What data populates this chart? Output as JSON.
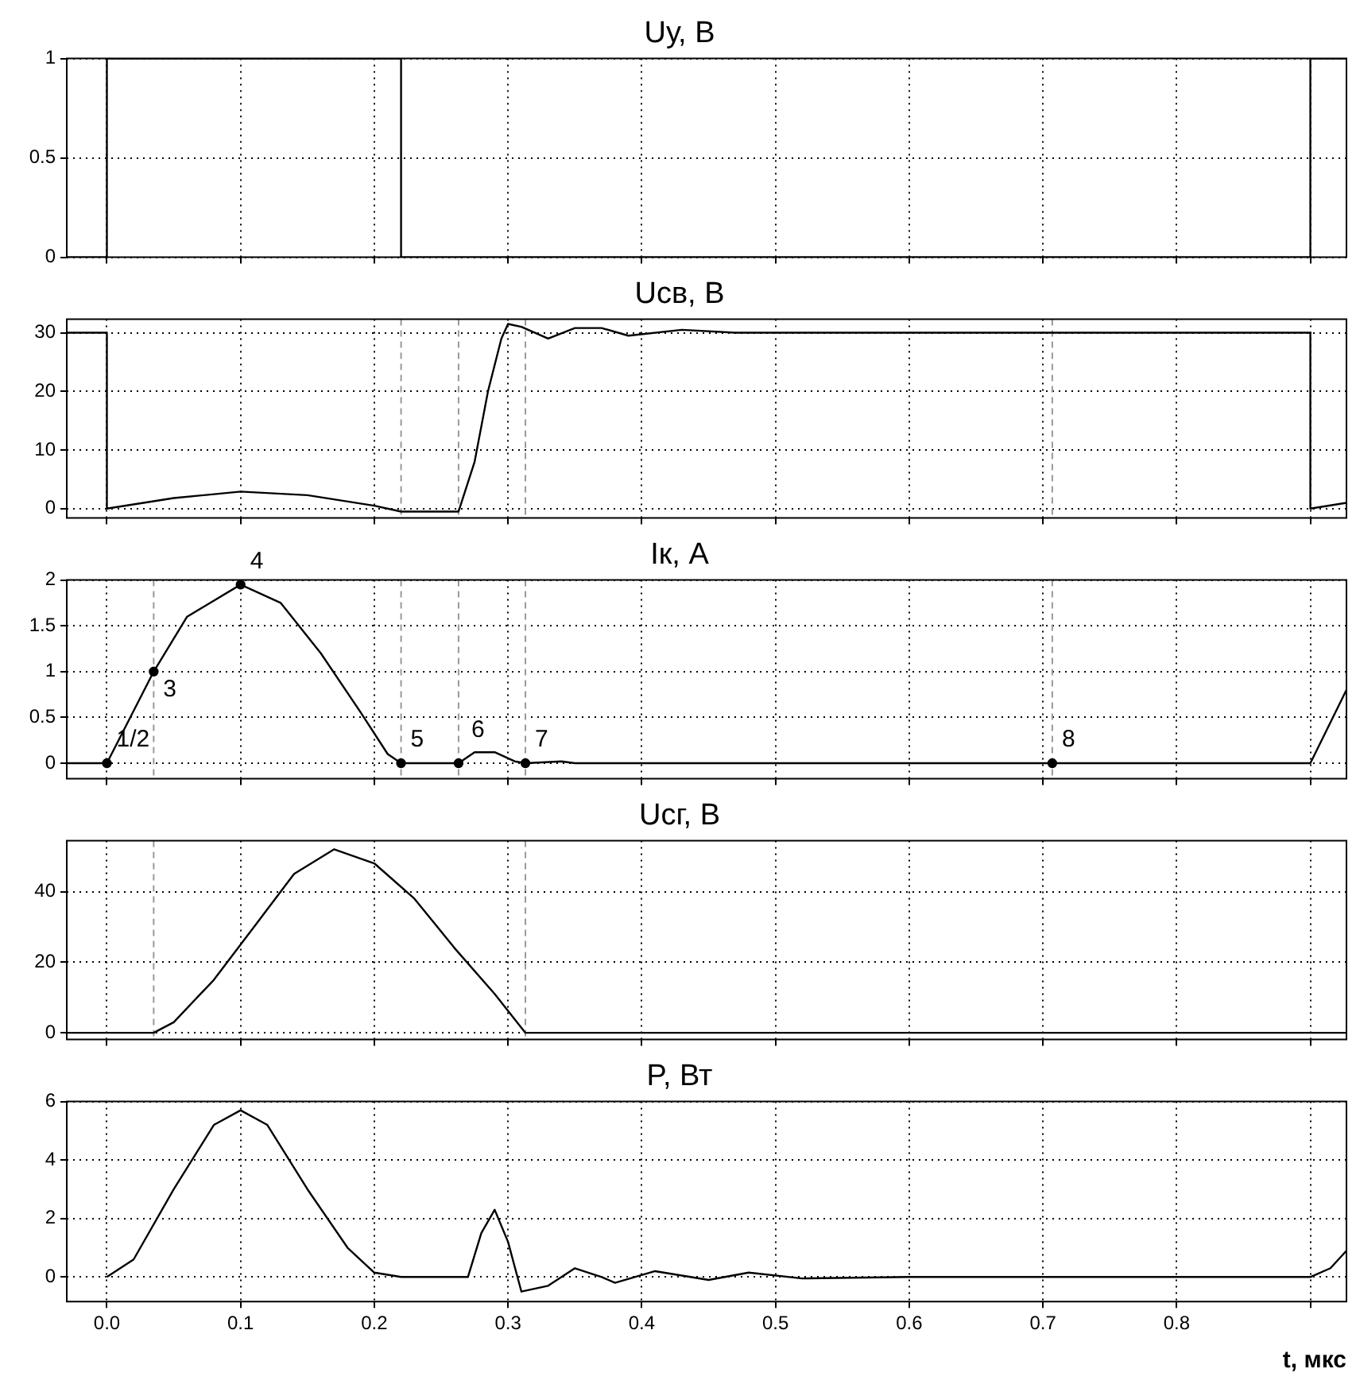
{
  "chart_data": [
    {
      "type": "line",
      "title": "Uу, В",
      "xlim": [
        -0.03,
        0.927
      ],
      "ylim": [
        0,
        1
      ],
      "yticks": [
        0,
        0.5,
        1
      ],
      "xticks": [
        0,
        0.1,
        0.2,
        0.3,
        0.4,
        0.5,
        0.6,
        0.7,
        0.8,
        0.9
      ],
      "grid": true,
      "tick_labels": "y",
      "marker": "none",
      "line_style": "solid",
      "series": [
        {
          "color": "#000000",
          "x": [
            -0.03,
            0,
            0,
            0.22,
            0.22,
            0.9,
            0.9,
            0.927
          ],
          "values": [
            0,
            0,
            1,
            1,
            0,
            0,
            1,
            1
          ]
        }
      ]
    },
    {
      "type": "line",
      "title": "Uсв, В",
      "xlim": [
        -0.03,
        0.927
      ],
      "ylim": [
        -1.6,
        32.3
      ],
      "yticks": [
        0,
        10,
        20,
        30
      ],
      "xticks": [
        0,
        0.1,
        0.2,
        0.3,
        0.4,
        0.5,
        0.6,
        0.7,
        0.8,
        0.9
      ],
      "grid": true,
      "tick_labels": "y",
      "marker": "none",
      "line_style": "solid",
      "ref_lines": [
        {
          "axis": "x",
          "value": 0.22,
          "color": "#999999",
          "line_style": "dashed"
        },
        {
          "axis": "x",
          "value": 0.263,
          "color": "#999999",
          "line_style": "dashed"
        },
        {
          "axis": "x",
          "value": 0.313,
          "color": "#999999",
          "line_style": "dashed"
        },
        {
          "axis": "x",
          "value": 0.707,
          "color": "#999999",
          "line_style": "dashed"
        }
      ],
      "series": [
        {
          "color": "#000000",
          "x": [
            -0.03,
            0,
            0,
            0.05,
            0.1,
            0.15,
            0.2,
            0.22,
            0.263,
            0.275,
            0.285,
            0.295,
            0.3,
            0.31,
            0.33,
            0.35,
            0.37,
            0.39,
            0.43,
            0.47,
            0.6,
            0.9,
            0.9,
            0.927
          ],
          "values": [
            30,
            30,
            0,
            1.8,
            2.9,
            2.3,
            0.5,
            -0.5,
            -0.5,
            8,
            20,
            29,
            31.5,
            31,
            29,
            30.8,
            30.8,
            29.5,
            30.5,
            30,
            30,
            30,
            0,
            1
          ]
        }
      ]
    },
    {
      "type": "line",
      "title": "Iк, А",
      "xlim": [
        -0.03,
        0.927
      ],
      "ylim": [
        -0.17,
        2
      ],
      "yticks": [
        0,
        0.5,
        1,
        1.5,
        2
      ],
      "xticks": [
        0,
        0.1,
        0.2,
        0.3,
        0.4,
        0.5,
        0.6,
        0.7,
        0.8,
        0.9
      ],
      "grid": true,
      "tick_labels": "y",
      "marker": "none",
      "line_style": "solid",
      "ref_lines": [
        {
          "axis": "x",
          "value": 0.035,
          "color": "#999999",
          "line_style": "dashed"
        },
        {
          "axis": "x",
          "value": 0.22,
          "color": "#999999",
          "line_style": "dashed"
        },
        {
          "axis": "x",
          "value": 0.263,
          "color": "#999999",
          "line_style": "dashed"
        },
        {
          "axis": "x",
          "value": 0.313,
          "color": "#999999",
          "line_style": "dashed"
        },
        {
          "axis": "x",
          "value": 0.707,
          "color": "#999999",
          "line_style": "dashed"
        }
      ],
      "annotations": [
        {
          "text": "1/2",
          "x": 0,
          "y": 0
        },
        {
          "text": "3",
          "x": 0.035,
          "y": 1
        },
        {
          "text": "4",
          "x": 0.1,
          "y": 1.95
        },
        {
          "text": "5",
          "x": 0.22,
          "y": 0
        },
        {
          "text": "6",
          "x": 0.263,
          "y": 0
        },
        {
          "text": "7",
          "x": 0.313,
          "y": 0
        },
        {
          "text": "8",
          "x": 0.707,
          "y": 0
        }
      ],
      "series": [
        {
          "color": "#000000",
          "x": [
            -0.03,
            0,
            0.035,
            0.06,
            0.1,
            0.13,
            0.16,
            0.19,
            0.21,
            0.22,
            0.263,
            0.275,
            0.29,
            0.305,
            0.313,
            0.34,
            0.35,
            0.9,
            0.927
          ],
          "values": [
            0,
            0,
            1,
            1.6,
            1.95,
            1.75,
            1.2,
            0.55,
            0.1,
            0,
            0,
            0.12,
            0.12,
            0.02,
            0,
            0.02,
            0,
            0,
            0.8
          ]
        },
        {
          "type": "scatter",
          "marker": "circle",
          "color": "#000000",
          "x": [
            0,
            0.035,
            0.1,
            0.22,
            0.263,
            0.313,
            0.707
          ],
          "values": [
            0,
            1,
            1.95,
            0,
            0,
            0,
            0
          ]
        }
      ]
    },
    {
      "type": "line",
      "title": "Uсг, В",
      "xlim": [
        -0.03,
        0.927
      ],
      "ylim": [
        -1.9,
        54.4
      ],
      "yticks": [
        0,
        20,
        40
      ],
      "xticks": [
        0,
        0.1,
        0.2,
        0.3,
        0.4,
        0.5,
        0.6,
        0.7,
        0.8,
        0.9
      ],
      "grid": true,
      "tick_labels": "y",
      "marker": "none",
      "line_style": "solid",
      "ref_lines": [
        {
          "axis": "x",
          "value": 0.035,
          "color": "#999999",
          "line_style": "dashed"
        },
        {
          "axis": "x",
          "value": 0.313,
          "color": "#999999",
          "line_style": "dashed"
        }
      ],
      "series": [
        {
          "color": "#000000",
          "x": [
            -0.03,
            0.035,
            0.05,
            0.08,
            0.11,
            0.14,
            0.17,
            0.2,
            0.23,
            0.26,
            0.29,
            0.313,
            0.927
          ],
          "values": [
            0,
            0,
            3,
            15,
            30,
            45,
            52,
            48,
            38,
            24,
            11,
            0,
            0
          ]
        }
      ]
    },
    {
      "type": "line",
      "title": "P, Вт",
      "xlabel": "t, мкс",
      "xlim": [
        -0.03,
        0.927
      ],
      "ylim": [
        -0.84,
        6
      ],
      "yticks": [
        0,
        2,
        4,
        6
      ],
      "xticks": [
        {
          "value": 0,
          "label": "0.0"
        },
        {
          "value": 0.1,
          "label": "0.1"
        },
        {
          "value": 0.2,
          "label": "0.2"
        },
        {
          "value": 0.3,
          "label": "0.3"
        },
        {
          "value": 0.4,
          "label": "0.4"
        },
        {
          "value": 0.5,
          "label": "0.5"
        },
        {
          "value": 0.6,
          "label": "0.6"
        },
        {
          "value": 0.7,
          "label": "0.7"
        },
        {
          "value": 0.8,
          "label": "0.8"
        },
        {
          "value": 0.9,
          "label": null
        }
      ],
      "grid": true,
      "marker": "none",
      "line_style": "solid",
      "series": [
        {
          "color": "#000000",
          "x": [
            0,
            0.02,
            0.05,
            0.08,
            0.1,
            0.12,
            0.15,
            0.18,
            0.2,
            0.22,
            0.27,
            0.28,
            0.29,
            0.3,
            0.31,
            0.33,
            0.35,
            0.37,
            0.38,
            0.41,
            0.45,
            0.48,
            0.52,
            0.6,
            0.9,
            0.915,
            0.927
          ],
          "values": [
            0,
            0.6,
            3,
            5.2,
            5.7,
            5.2,
            3,
            1,
            0.15,
            0,
            0,
            1.5,
            2.3,
            1.2,
            -0.5,
            -0.3,
            0.3,
            0,
            -0.2,
            0.2,
            -0.1,
            0.15,
            -0.05,
            0,
            0,
            0.3,
            0.9
          ]
        }
      ]
    }
  ]
}
